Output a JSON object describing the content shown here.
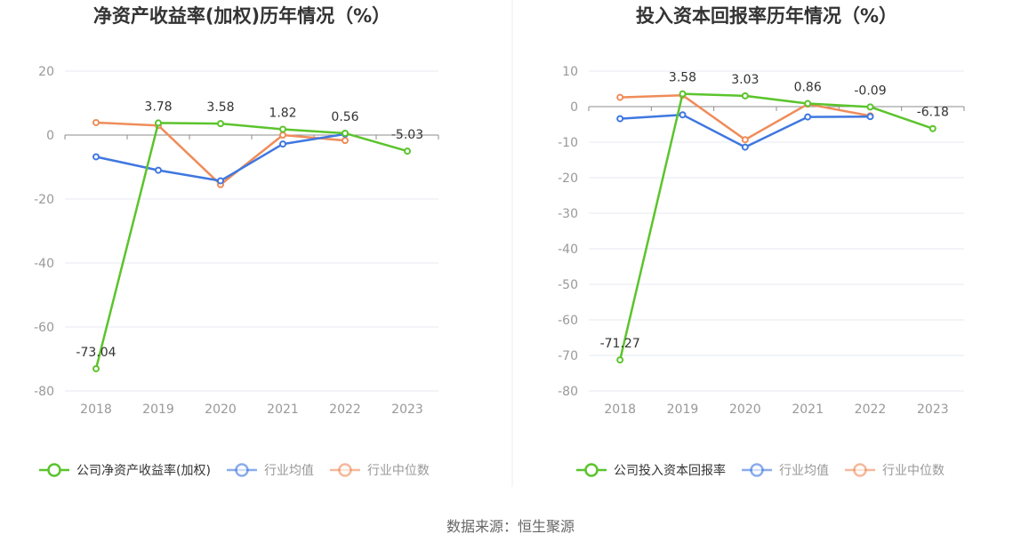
{
  "source": "数据来源：恒生聚源",
  "colors": {
    "company": "#5bc42c",
    "industry_avg": "#3f77e0",
    "industry_median": "#ef8c5a",
    "grid": "#e4e8f0",
    "zero_line": "#8c8c8c",
    "divider": "#eeeeee"
  },
  "chart_data": [
    {
      "type": "line",
      "title": "净资产收益率(加权)历年情况（%）",
      "categories": [
        "2018",
        "2019",
        "2020",
        "2021",
        "2022",
        "2023"
      ],
      "ylim": [
        -80,
        20
      ],
      "yticks": [
        20,
        0,
        -20,
        -40,
        -60,
        -80
      ],
      "grid": true,
      "legend_position": "bottom",
      "series": [
        {
          "name": "公司净资产收益率(加权)",
          "color_key": "company",
          "values": [
            -73.04,
            3.78,
            3.58,
            1.82,
            0.56,
            -5.03
          ],
          "labels": [
            "-73.04",
            "3.78",
            "3.58",
            "1.82",
            "0.56",
            "-5.03"
          ]
        },
        {
          "name": "行业均值",
          "color_key": "industry_avg",
          "values": [
            -6.8,
            -11.0,
            -14.3,
            -2.8,
            0.3,
            null
          ]
        },
        {
          "name": "行业中位数",
          "color_key": "industry_median",
          "values": [
            3.9,
            3.0,
            -15.5,
            0.0,
            -1.7,
            null
          ]
        }
      ]
    },
    {
      "type": "line",
      "title": "投入资本回报率历年情况（%）",
      "categories": [
        "2018",
        "2019",
        "2020",
        "2021",
        "2022",
        "2023"
      ],
      "ylim": [
        -80,
        10
      ],
      "yticks": [
        10,
        0,
        -10,
        -20,
        -30,
        -40,
        -50,
        -60,
        -70,
        -80
      ],
      "grid": true,
      "legend_position": "bottom",
      "series": [
        {
          "name": "公司投入资本回报率",
          "color_key": "company",
          "values": [
            -71.27,
            3.58,
            3.03,
            0.86,
            -0.09,
            -6.18
          ],
          "labels": [
            "-71.27",
            "3.58",
            "3.03",
            "0.86",
            "-0.09",
            "-6.18"
          ]
        },
        {
          "name": "行业均值",
          "color_key": "industry_avg",
          "values": [
            -3.4,
            -2.3,
            -11.4,
            -2.9,
            -2.8,
            null
          ]
        },
        {
          "name": "行业中位数",
          "color_key": "industry_median",
          "values": [
            2.6,
            3.2,
            -9.3,
            0.7,
            -2.6,
            null
          ]
        }
      ]
    }
  ]
}
